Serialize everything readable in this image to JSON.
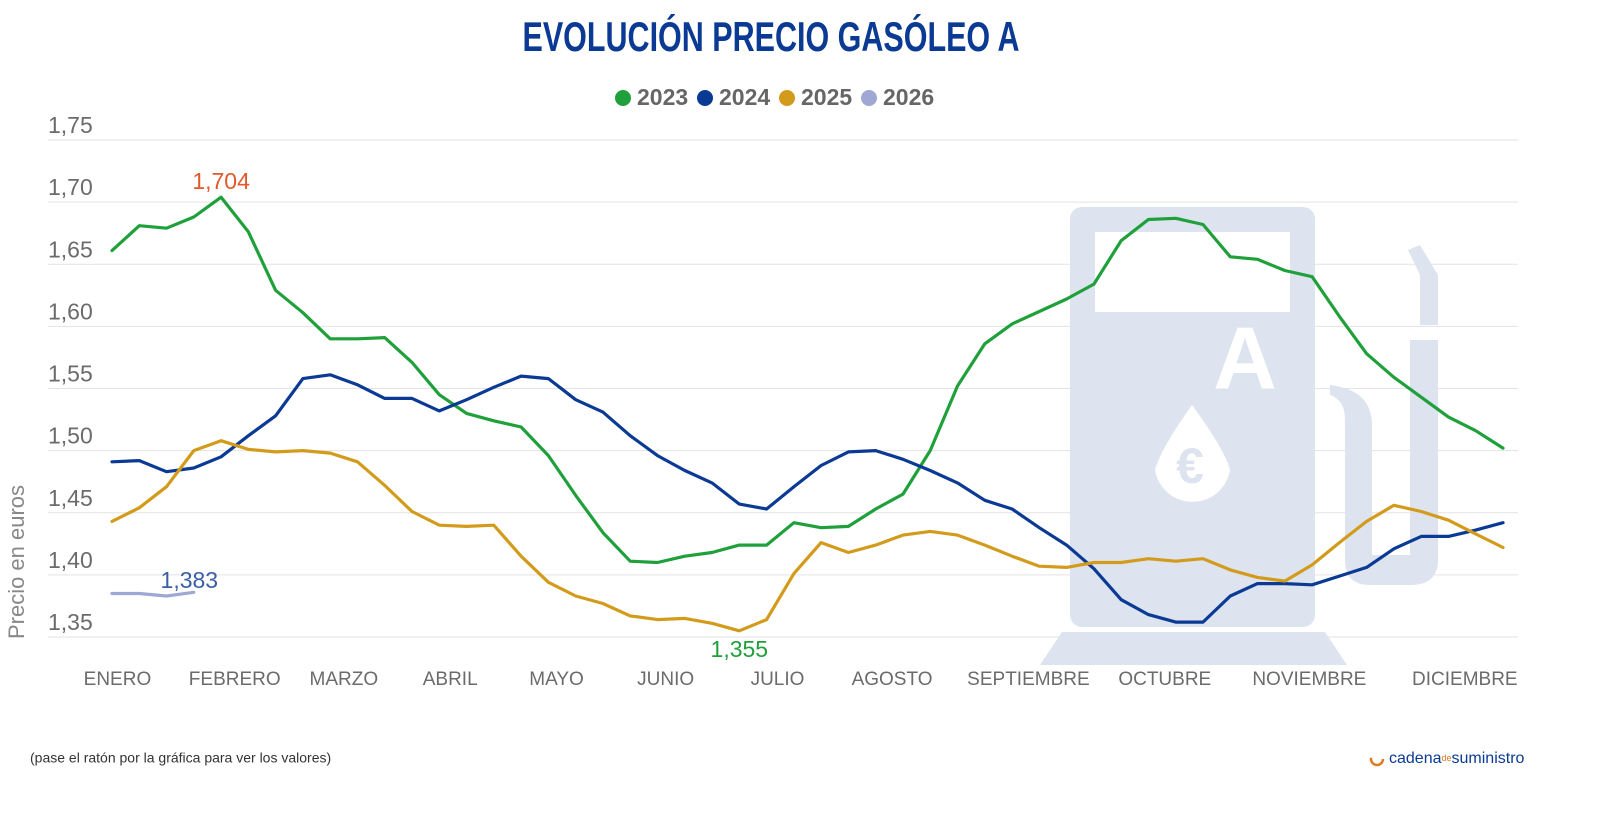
{
  "chart_data": {
    "type": "line",
    "title": "EVOLUCIÓN PRECIO GASÓLEO A",
    "y_label": "Precio en euros",
    "note": "(pase el ratón por la gráfica para ver los valores)",
    "brand": [
      "cadena",
      "de",
      "suministro"
    ],
    "grid": true,
    "legend": "top",
    "x": [
      1,
      2,
      3,
      4,
      5,
      6,
      7,
      8,
      9,
      10,
      11,
      12,
      13,
      14,
      15,
      16,
      17,
      18,
      19,
      20,
      21,
      22,
      23,
      24,
      25,
      26,
      27,
      28,
      29,
      30,
      31,
      32,
      33,
      34,
      35,
      36,
      37,
      38,
      39,
      40,
      41,
      42,
      43,
      44,
      45,
      46,
      47,
      48,
      49,
      50,
      51,
      52
    ],
    "xlim": [
      1,
      52
    ],
    "xticks": [
      {
        "value": 1.2,
        "label": "ENERO"
      },
      {
        "value": 5.5,
        "label": "FEBRERO"
      },
      {
        "value": 9.5,
        "label": "MARZO"
      },
      {
        "value": 13.4,
        "label": "ABRIL"
      },
      {
        "value": 17.3,
        "label": "MAYO"
      },
      {
        "value": 21.3,
        "label": "JUNIO"
      },
      {
        "value": 25.4,
        "label": "JULIO"
      },
      {
        "value": 29.6,
        "label": "AGOSTO"
      },
      {
        "value": 34.6,
        "label": "SEPTIEMBRE"
      },
      {
        "value": 39.6,
        "label": "OCTUBRE"
      },
      {
        "value": 44.9,
        "label": "NOVIEMBRE"
      },
      {
        "value": 50.6,
        "label": "DICIEMBRE"
      }
    ],
    "ylim": [
      1.35,
      1.75
    ],
    "yticks": [
      {
        "value": 1.35,
        "label": "1,35"
      },
      {
        "value": 1.4,
        "label": "1,40"
      },
      {
        "value": 1.45,
        "label": "1,45"
      },
      {
        "value": 1.5,
        "label": "1,50"
      },
      {
        "value": 1.55,
        "label": "1,55"
      },
      {
        "value": 1.6,
        "label": "1,60"
      },
      {
        "value": 1.65,
        "label": "1,65"
      },
      {
        "value": 1.7,
        "label": "1,70"
      },
      {
        "value": 1.75,
        "label": "1,75"
      }
    ],
    "series": [
      {
        "name": "2023",
        "color": "#1fa03a",
        "values": [
          1.661,
          1.681,
          1.679,
          1.688,
          1.704,
          1.676,
          1.629,
          1.611,
          1.59,
          1.59,
          1.591,
          1.571,
          1.545,
          1.53,
          1.524,
          1.519,
          1.496,
          1.464,
          1.434,
          1.411,
          1.41,
          1.415,
          1.418,
          1.424,
          1.424,
          1.442,
          1.438,
          1.439,
          1.453,
          1.465,
          1.5,
          1.552,
          1.586,
          1.602,
          1.612,
          1.622,
          1.634,
          1.669,
          1.686,
          1.687,
          1.682,
          1.656,
          1.654,
          1.645,
          1.64,
          1.608,
          1.578,
          1.559,
          1.543,
          1.527,
          1.516,
          1.502
        ]
      },
      {
        "name": "2024",
        "color": "#0b3a94",
        "values": [
          1.491,
          1.492,
          1.483,
          1.486,
          1.495,
          1.512,
          1.528,
          1.558,
          1.561,
          1.553,
          1.542,
          1.542,
          1.532,
          1.541,
          1.551,
          1.56,
          1.558,
          1.541,
          1.531,
          1.512,
          1.496,
          1.484,
          1.474,
          1.457,
          1.453,
          1.471,
          1.488,
          1.499,
          1.5,
          1.493,
          1.484,
          1.474,
          1.46,
          1.453,
          1.438,
          1.424,
          1.405,
          1.38,
          1.368,
          1.362,
          1.362,
          1.383,
          1.393,
          1.393,
          1.392,
          1.399,
          1.406,
          1.421,
          1.431,
          1.431,
          1.436,
          1.442
        ]
      },
      {
        "name": "2025",
        "color": "#d39b1c",
        "values": [
          1.443,
          1.454,
          1.471,
          1.5,
          1.508,
          1.501,
          1.499,
          1.5,
          1.498,
          1.491,
          1.472,
          1.451,
          1.44,
          1.439,
          1.44,
          1.415,
          1.394,
          1.383,
          1.377,
          1.367,
          1.364,
          1.365,
          1.361,
          1.355,
          1.364,
          1.401,
          1.426,
          1.418,
          1.424,
          1.432,
          1.435,
          1.432,
          1.424,
          1.415,
          1.407,
          1.406,
          1.41,
          1.41,
          1.413,
          1.411,
          1.413,
          1.404,
          1.398,
          1.395,
          1.408,
          1.426,
          1.443,
          1.456,
          1.451,
          1.444,
          1.433,
          1.422
        ]
      },
      {
        "name": "2026",
        "color": "#9fa8d5",
        "x": [
          1,
          2,
          3,
          4
        ],
        "values": [
          1.385,
          1.385,
          1.383,
          1.386
        ]
      }
    ],
    "annotations": [
      {
        "label": "1,704",
        "x": 5,
        "value": 1.704,
        "color": "#e05a2b"
      },
      {
        "label": "1,355",
        "x": 24,
        "value": 1.355,
        "color": "#1fa03a"
      },
      {
        "label": "1,383",
        "x": 3,
        "value": 1.383,
        "color": "#3a5fa8"
      }
    ]
  }
}
